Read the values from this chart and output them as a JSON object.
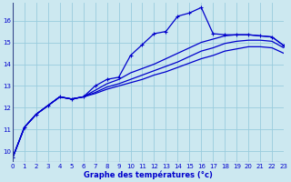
{
  "xlabel": "Graphe des températures (°c)",
  "background_color": "#cce8f0",
  "grid_color": "#99ccdd",
  "line_color": "#0000cc",
  "xlim": [
    0,
    23
  ],
  "ylim": [
    9.5,
    16.8
  ],
  "x_ticks": [
    0,
    1,
    2,
    3,
    4,
    5,
    6,
    7,
    8,
    9,
    10,
    11,
    12,
    13,
    14,
    15,
    16,
    17,
    18,
    19,
    20,
    21,
    22,
    23
  ],
  "y_ticks": [
    10,
    11,
    12,
    13,
    14,
    15,
    16
  ],
  "curve_marked_x": [
    0,
    1,
    2,
    3,
    4,
    5,
    6,
    7,
    8,
    9,
    10,
    11,
    12,
    13,
    14,
    15,
    16,
    17,
    18,
    19,
    20,
    21,
    22,
    23
  ],
  "curve_marked_y": [
    9.7,
    11.1,
    11.7,
    12.1,
    12.5,
    12.4,
    12.5,
    13.0,
    13.3,
    13.4,
    14.4,
    14.9,
    15.4,
    15.5,
    16.2,
    16.35,
    16.6,
    15.4,
    15.35,
    15.35,
    15.35,
    15.3,
    15.25,
    14.85
  ],
  "curve_smooth1_x": [
    0,
    1,
    2,
    3,
    4,
    5,
    6,
    7,
    8,
    9,
    10,
    11,
    12,
    13,
    14,
    15,
    16,
    17,
    18,
    19,
    20,
    21,
    22,
    23
  ],
  "curve_smooth1_y": [
    9.7,
    11.1,
    11.7,
    12.1,
    12.5,
    12.4,
    12.5,
    12.8,
    13.1,
    13.3,
    13.6,
    13.8,
    14.0,
    14.25,
    14.5,
    14.75,
    15.0,
    15.15,
    15.3,
    15.35,
    15.35,
    15.3,
    15.25,
    14.85
  ],
  "curve_smooth2_x": [
    0,
    1,
    2,
    3,
    4,
    5,
    6,
    7,
    8,
    9,
    10,
    11,
    12,
    13,
    14,
    15,
    16,
    17,
    18,
    19,
    20,
    21,
    22,
    23
  ],
  "curve_smooth2_y": [
    9.7,
    11.1,
    11.7,
    12.1,
    12.5,
    12.4,
    12.5,
    12.7,
    12.95,
    13.1,
    13.3,
    13.5,
    13.7,
    13.9,
    14.1,
    14.35,
    14.6,
    14.75,
    14.95,
    15.05,
    15.1,
    15.1,
    15.05,
    14.75
  ],
  "curve_smooth3_x": [
    0,
    1,
    2,
    3,
    4,
    5,
    6,
    7,
    8,
    9,
    10,
    11,
    12,
    13,
    14,
    15,
    16,
    17,
    18,
    19,
    20,
    21,
    22,
    23
  ],
  "curve_smooth3_y": [
    9.7,
    11.1,
    11.7,
    12.1,
    12.5,
    12.4,
    12.5,
    12.65,
    12.85,
    13.0,
    13.15,
    13.3,
    13.5,
    13.65,
    13.85,
    14.05,
    14.25,
    14.4,
    14.6,
    14.7,
    14.8,
    14.8,
    14.75,
    14.5
  ]
}
